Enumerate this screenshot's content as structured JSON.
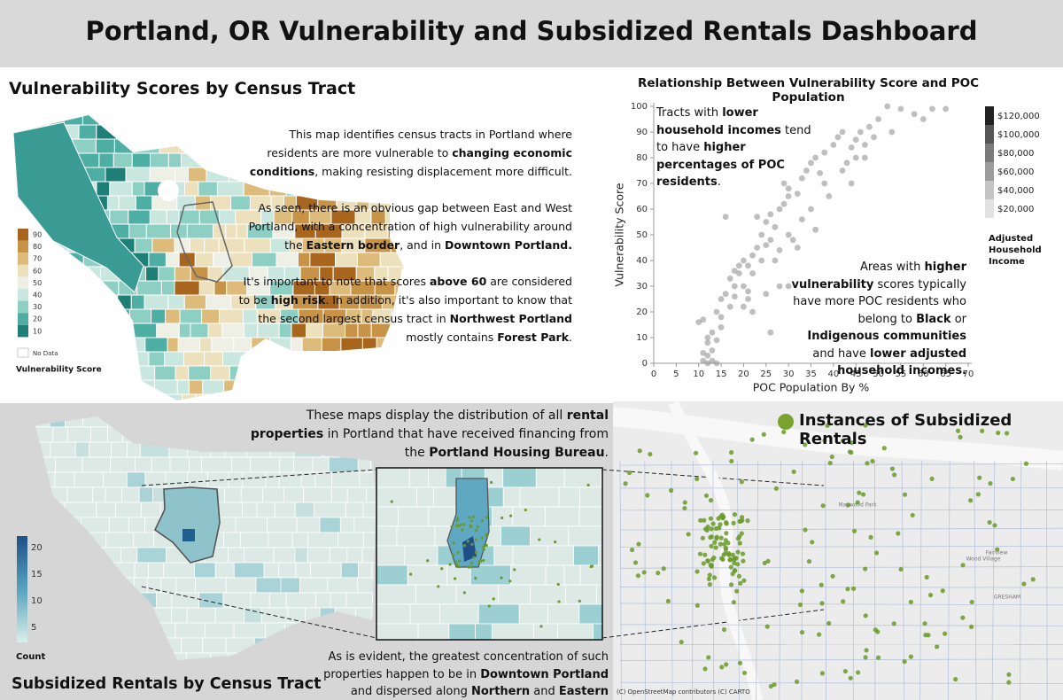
{
  "header": {
    "title": "Portland, OR Vulnerability and Subsidized Rentals Dashboard"
  },
  "vulnerability_map": {
    "title": "Vulnerability Scores by Census Tract",
    "legend": {
      "labels": [
        "90",
        "80",
        "70",
        "60",
        "50",
        "40",
        "30",
        "20",
        "10"
      ],
      "no_data": "No Data",
      "title": "Vulnerability Score"
    },
    "paragraphs": [
      [
        "This map identifies census tracts in Portland where residents are more vulnerable to ",
        "changing economic conditions",
        ", making resisting displacement more difficult."
      ],
      [
        "As seen, there is an obvious gap between East and West Portland, with a concentration of high vulnerability around the ",
        "Eastern border",
        ", and in ",
        "Downtown Portland."
      ],
      [
        "It's important to note that scores ",
        "above 60",
        " are considered to be ",
        "high risk",
        ". In addition, it's also important to know that the second largest census tract in ",
        "Northwest Portland",
        " mostly contains ",
        "Forest Park",
        "."
      ]
    ]
  },
  "chart_data": {
    "type": "scatter",
    "title": "Relationship Between Vulnerability Score and POC Population",
    "xlabel": "POC Population By %",
    "ylabel": "Vulnerability Score",
    "x": [
      10,
      11,
      12,
      12,
      11,
      12,
      13,
      13,
      14,
      12,
      11,
      13,
      14,
      15,
      15,
      14,
      15,
      16,
      17,
      18,
      17,
      19,
      20,
      18,
      20,
      21,
      22,
      23,
      22,
      24,
      25,
      24,
      26,
      27,
      25,
      23,
      26,
      28,
      29,
      30,
      29,
      30,
      32,
      33,
      34,
      35,
      36,
      37,
      38,
      40,
      41,
      42,
      44,
      45,
      46,
      48,
      47,
      50,
      52,
      55,
      58,
      62,
      65,
      60,
      16,
      19,
      21,
      22,
      25,
      26,
      20,
      18,
      21,
      27,
      28,
      30,
      31,
      33,
      35,
      36,
      38,
      39,
      32,
      42,
      43,
      45,
      44,
      47,
      49,
      53,
      30,
      28
    ],
    "values": [
      16,
      17,
      10,
      8,
      4,
      3,
      5,
      1,
      0,
      0,
      1,
      12,
      9,
      14,
      18,
      20,
      25,
      27,
      22,
      30,
      33,
      35,
      30,
      36,
      40,
      38,
      35,
      45,
      42,
      40,
      46,
      50,
      48,
      53,
      55,
      57,
      58,
      60,
      62,
      65,
      70,
      68,
      66,
      72,
      75,
      78,
      80,
      74,
      82,
      85,
      88,
      90,
      84,
      87,
      90,
      92,
      85,
      95,
      100,
      99,
      97,
      99,
      99,
      95,
      57,
      38,
      25,
      20,
      27,
      12,
      22,
      26,
      28,
      40,
      44,
      50,
      48,
      56,
      60,
      52,
      70,
      65,
      45,
      75,
      78,
      80,
      70,
      80,
      88,
      90,
      30,
      30
    ],
    "color": "#8a8a8a",
    "xlim": [
      0,
      70
    ],
    "ylim": [
      0,
      100
    ],
    "xticks": [
      0,
      5,
      10,
      15,
      20,
      25,
      30,
      35,
      40,
      45,
      50,
      55,
      60,
      65,
      70
    ],
    "yticks": [
      0,
      10,
      20,
      30,
      40,
      50,
      60,
      70,
      80,
      90,
      100
    ],
    "annotations": [
      [
        "Tracts with ",
        "lower household incomes",
        " tend to have ",
        "higher percentages of POC residents",
        "."
      ],
      [
        "Areas with ",
        "higher vulnerability",
        " scores typically have more POC residents who belong to ",
        "Black",
        " or ",
        "Indigenous communities",
        " and have ",
        "lower adjusted household incomes."
      ]
    ],
    "color_legend": {
      "labels": [
        "$120,000",
        "$100,000",
        "$80,000",
        "$60,000",
        "$40,000",
        "$20,000"
      ],
      "title": "Adjusted Household Income"
    }
  },
  "rentals": {
    "title": "Subsidized Rentals by Census Tract",
    "count_legend": {
      "labels": [
        "20",
        "15",
        "10",
        "5"
      ],
      "title": "Count"
    },
    "paragraphs": [
      [
        "These maps display the distribution of all ",
        "rental properties",
        " in Portland that have received financing from the ",
        "Portland Housing Bureau",
        "."
      ],
      [
        "As is evident, the greatest concentration of such properties happen to be in ",
        "Downtown Portland",
        " and dispersed along ",
        "Northern",
        " and ",
        "Eastern outskirts",
        "."
      ]
    ]
  },
  "subsidized_map": {
    "legend": "Instances of Subsidized Rentals",
    "attribution": "(C) OpenStreetMap contributors (C) CARTO",
    "place_labels": [
      "Fairview",
      "Wood Village",
      "GRESHAM",
      "Maywood Park"
    ]
  }
}
